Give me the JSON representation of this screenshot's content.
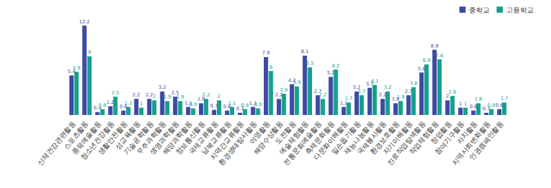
{
  "chart_data": {
    "type": "bar",
    "categories": [
      "신체건강관련활동",
      "스포츠활동",
      "종목예술활동",
      "청소년건강활동",
      "생활안전활동",
      "성교육활동",
      "기술공학활동",
      "우주과학활동",
      "생명과학활동",
      "해양과학활동",
      "정보통신활동",
      "국제교류활동",
      "남북교류활동",
      "지역간교류활동",
      "환경생태탐사활동",
      "야영활동",
      "해양수상활동",
      "도전활동",
      "예술체험활동",
      "전통문화예술활동",
      "축제문화활동",
      "다문화이해활동",
      "일손돕기활동",
      "재능나눔활동",
      "국제봉사활동",
      "환경보호활동",
      "자기이해활동",
      "진로직업탐색활동",
      "직업체험활동",
      "창업활동",
      "참여기구활동",
      "자치활동",
      "지역사회변화활동",
      "인권캠페인활동"
    ],
    "series": [
      {
        "name": "중학교",
        "color": "#3c4aa3",
        "values": [
          5.4,
          12.2,
          0.4,
          1.2,
          0.6,
          2.2,
          2.2,
          3.2,
          2.5,
          1.1,
          1.6,
          0.7,
          0.6,
          0.3,
          1.1,
          7.9,
          2.2,
          4.2,
          8.1,
          2.7,
          5.2,
          1.1,
          3.2,
          3.7,
          2.2,
          1.6,
          2.7,
          5.8,
          8.9,
          2.0,
          1.0,
          0.6,
          0.3,
          0.8
        ]
      },
      {
        "name": "고등학교",
        "color": "#16a08c",
        "values": [
          5.9,
          8.0,
          0.8,
          2.5,
          1.1,
          1.0,
          2.0,
          1.9,
          1.9,
          0.9,
          2.2,
          2.0,
          1.1,
          0.8,
          0.9,
          6.0,
          2.9,
          3.9,
          6.5,
          2.2,
          6.2,
          1.7,
          2.7,
          4.1,
          3.2,
          1.9,
          3.8,
          6.9,
          7.6,
          2.6,
          1.0,
          1.6,
          0.8,
          1.7
        ]
      }
    ],
    "data_labels": true,
    "tick_labels": "x",
    "grid": false,
    "legend": "upper right"
  }
}
